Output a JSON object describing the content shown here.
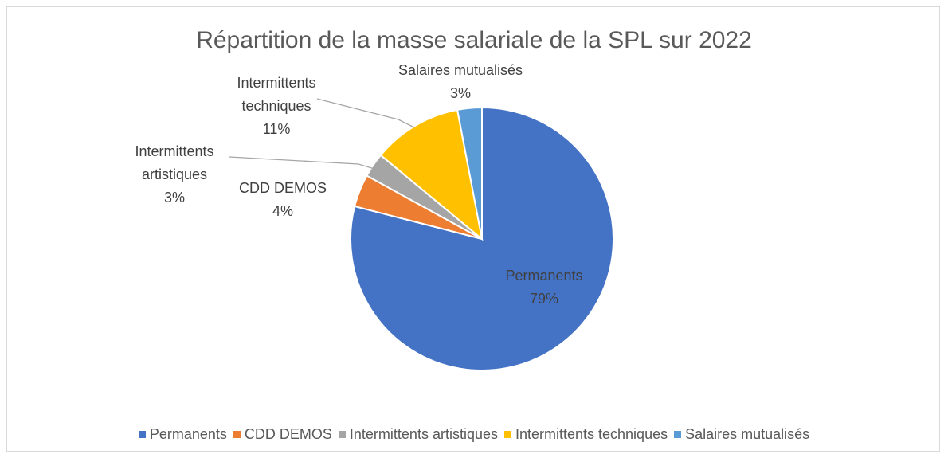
{
  "chart_data": {
    "type": "pie",
    "title": "Répartition de la masse salariale de la SPL sur 2022",
    "categories": [
      "Permanents",
      "CDD DEMOS",
      "Intermittents artistiques",
      "Intermittents techniques",
      "Salaires mutualisés"
    ],
    "values": [
      79,
      4,
      3,
      11,
      3
    ],
    "value_labels": [
      "79%",
      "4%",
      "3%",
      "11%",
      "3%"
    ],
    "colors": [
      "#4472c4",
      "#ed7d31",
      "#a5a5a5",
      "#ffc000",
      "#5b9bd5"
    ],
    "legend": "bottom"
  }
}
